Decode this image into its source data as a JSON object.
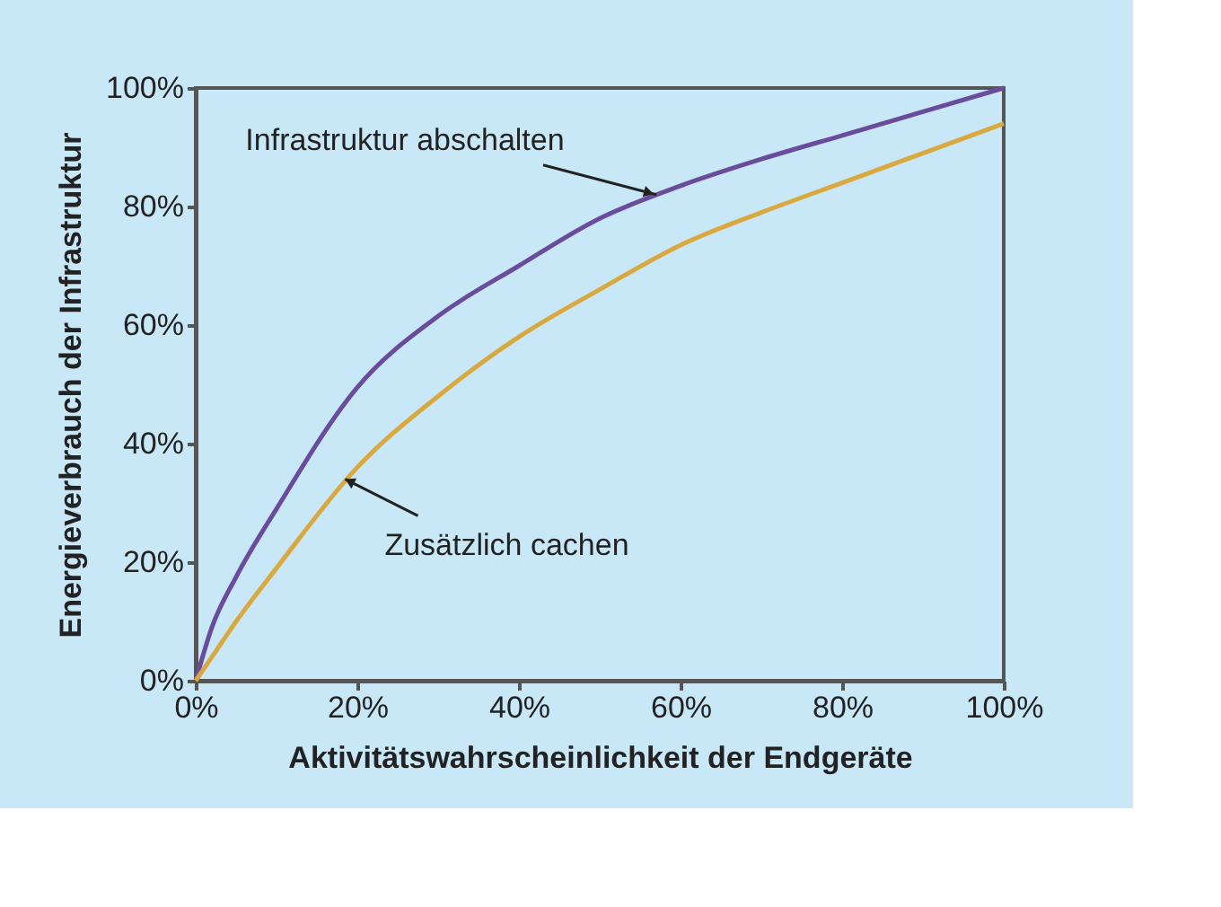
{
  "chart_data": {
    "type": "line",
    "xlabel": "Aktivitätswahrscheinlichkeit der Endgeräte",
    "ylabel": "Energieverbrauch der Infrastruktur",
    "x": [
      0,
      2,
      5,
      10,
      20,
      30,
      40,
      50,
      60,
      70,
      80,
      90,
      100
    ],
    "series": [
      {
        "color": "#6a4c9c",
        "values": [
          0,
          9,
          17.5,
          29,
          49.5,
          61.5,
          70,
          78,
          83.5,
          88,
          92,
          96,
          100
        ]
      },
      {
        "color": "#d9a93f",
        "values": [
          0,
          4,
          10,
          19,
          36,
          48,
          58,
          66,
          73.5,
          79,
          84,
          89,
          94
        ]
      }
    ],
    "annotations": [
      {
        "text": "Infrastruktur abschalten",
        "x": 57,
        "y": 82
      },
      {
        "text": "Zusätzlich cachen",
        "x": 18.5,
        "y": 34
      }
    ],
    "xlim": [
      0,
      100
    ],
    "ylim": [
      0,
      100
    ],
    "xticks": [
      {
        "value": 0,
        "label": "0%"
      },
      {
        "value": 20,
        "label": "20%"
      },
      {
        "value": 40,
        "label": "40%"
      },
      {
        "value": 60,
        "label": "60%"
      },
      {
        "value": 80,
        "label": "80%"
      },
      {
        "value": 100,
        "label": "100%"
      }
    ],
    "yticks": [
      {
        "value": 0,
        "label": "0%"
      },
      {
        "value": 20,
        "label": "20%"
      },
      {
        "value": 40,
        "label": "40%"
      },
      {
        "value": 60,
        "label": "60%"
      },
      {
        "value": 80,
        "label": "80%"
      },
      {
        "value": 100,
        "label": "100%"
      }
    ],
    "grid": false,
    "marker": "none",
    "line_style": "solid"
  }
}
